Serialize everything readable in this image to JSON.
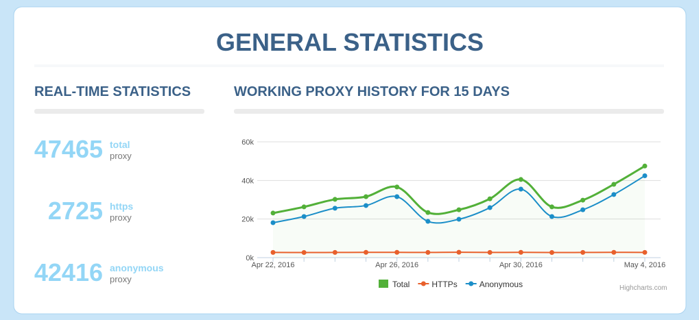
{
  "header": {
    "title": "GENERAL STATISTICS"
  },
  "realtime": {
    "title": "REAL-TIME STATISTICS",
    "items": [
      {
        "value": 47465,
        "label": "total",
        "unit": "proxy"
      },
      {
        "value": 2725,
        "label": "https",
        "unit": "proxy"
      },
      {
        "value": 42416,
        "label": "anonymous",
        "unit": "proxy"
      }
    ]
  },
  "chart_data": {
    "type": "line",
    "title": "WORKING PROXY HISTORY FOR 15 DAYS",
    "categories": [
      "Apr 22, 2016",
      null,
      null,
      null,
      "Apr 26, 2016",
      null,
      null,
      null,
      "Apr 30, 2016",
      null,
      null,
      null,
      "May 4, 2016"
    ],
    "series": [
      {
        "name": "Total",
        "color": "#52b038",
        "area": true,
        "values": [
          23100,
          26300,
          30200,
          31600,
          36600,
          23400,
          24800,
          30500,
          40500,
          26300,
          29800,
          38000,
          47465
        ]
      },
      {
        "name": "HTTPs",
        "color": "#e8602c",
        "values": [
          2700,
          2650,
          2700,
          2750,
          2750,
          2700,
          2800,
          2700,
          2750,
          2650,
          2700,
          2750,
          2725
        ]
      },
      {
        "name": "Anonymous",
        "color": "#1b8ec8",
        "values": [
          18100,
          21300,
          25600,
          27000,
          31600,
          18800,
          19900,
          25900,
          35500,
          21300,
          24800,
          32700,
          42416
        ]
      }
    ],
    "ylim": [
      0,
      60000
    ],
    "yticks": [
      {
        "value": 0,
        "label": "0k"
      },
      {
        "value": 20000,
        "label": "20k"
      },
      {
        "value": 40000,
        "label": "40k"
      },
      {
        "value": 60000,
        "label": "60k"
      }
    ],
    "grid": true,
    "credits": "Highcharts.com"
  }
}
